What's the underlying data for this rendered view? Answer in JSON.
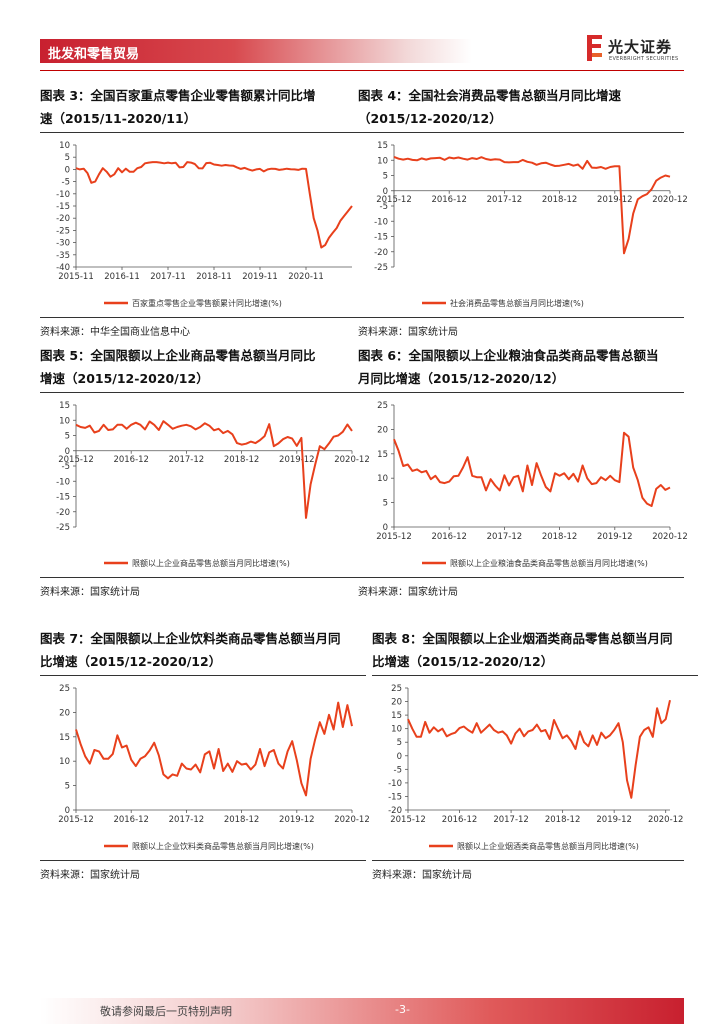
{
  "header": {
    "section": "批发和零售贸易",
    "brand": "光大证券",
    "brand_en": "EVERBRIGHT SECURITIES",
    "accent": "#c8202f"
  },
  "footer": {
    "disclaimer": "敬请参阅最后一页特别声明",
    "page": "-3-"
  },
  "panels": [
    {
      "title1": "图表 3：全国百家重点零售企业零售额累计同比增",
      "title2": "速（2015/11-2020/11）",
      "source": "资料来源：中华全国商业信息中心",
      "chart_data": {
        "type": "line",
        "color": "#e8401c",
        "series_name": "百家重点零售企业零售额累计同比增速(%)",
        "ylim": [
          -40,
          10
        ],
        "yticks": [
          10,
          5,
          0,
          -5,
          -10,
          -15,
          -20,
          -25,
          -30,
          -35,
          -40
        ],
        "xlabels": [
          "2015-11",
          "2016-11",
          "2017-11",
          "2018-11",
          "2019-11",
          "2020-11"
        ],
        "xaxis_at": "bottom",
        "values": [
          0.5,
          0,
          0.3,
          -1.5,
          -5.5,
          -5,
          -2,
          0.5,
          -1,
          -3,
          -2,
          0.5,
          -1.2,
          0.3,
          -1,
          -1,
          0.5,
          1,
          2.5,
          2.8,
          3,
          3,
          2.8,
          2.5,
          2.8,
          2.5,
          2.7,
          0.8,
          1,
          3,
          2.8,
          2.2,
          0.5,
          0.4,
          2.6,
          2.7,
          2,
          1.8,
          1.5,
          1.8,
          1.6,
          1.5,
          0.8,
          0.2,
          0.6,
          0,
          -0.5,
          0,
          0.2,
          -0.8,
          0,
          0.3,
          0.2,
          -0.2,
          0,
          0.3,
          0.1,
          0,
          -0.2,
          0.3,
          0.2,
          -10,
          -20,
          -25,
          -32,
          -31,
          -28,
          -26,
          -24,
          -21,
          -19,
          -17,
          -15
        ]
      }
    },
    {
      "title1": "图表 4：全国社会消费品零售总额当月同比增速",
      "title2": "（2015/12-2020/12）",
      "source": "资料来源：国家统计局",
      "chart_data": {
        "type": "line",
        "color": "#e8401c",
        "series_name": "社会消费品零售总额当月同比增速(%)",
        "ylim": [
          -25,
          15
        ],
        "yticks": [
          15,
          10,
          5,
          0,
          -5,
          -10,
          -15,
          -20,
          -25
        ],
        "xlabels": [
          "2015-12",
          "2016-12",
          "2017-12",
          "2018-12",
          "2019-12",
          "2020-12"
        ],
        "xaxis_at": "zero",
        "values": [
          11.1,
          10.5,
          10.2,
          10.5,
          10.1,
          10,
          10.6,
          10.2,
          10.6,
          10.7,
          10.8,
          10.1,
          10.9,
          10.6,
          10.9,
          10.5,
          10.2,
          10.7,
          10.4,
          11,
          10.4,
          10.1,
          10.3,
          10.2,
          9.4,
          9.3,
          9.4,
          9.4,
          10.1,
          9.5,
          9.2,
          8.5,
          9,
          9.2,
          8.6,
          8.1,
          8.2,
          8.5,
          8.8,
          8.2,
          8.6,
          7.2,
          9.8,
          7.6,
          7.5,
          7.8,
          7.2,
          7.8,
          8.0,
          8.0,
          -20.5,
          -15.8,
          -7.5,
          -2.8,
          -1.8,
          -1.1,
          0.5,
          3.3,
          4.3,
          5,
          4.6
        ]
      }
    },
    {
      "title1": "图表 5：全国限额以上企业商品零售总额当月同比",
      "title2": "增速（2015/12-2020/12）",
      "source": "资料来源：国家统计局",
      "chart_data": {
        "type": "line",
        "color": "#e8401c",
        "series_name": "限额以上企业商品零售总额当月同比增速(%)",
        "ylim": [
          -25,
          15
        ],
        "yticks": [
          15,
          10,
          5,
          0,
          -5,
          -10,
          -15,
          -20,
          -25
        ],
        "xlabels": [
          "2015-12",
          "2016-12",
          "2017-12",
          "2018-12",
          "2019-12",
          "2020-12"
        ],
        "xaxis_at": "zero",
        "values": [
          8.5,
          7.8,
          7.5,
          8.2,
          6,
          6.5,
          8.5,
          6.8,
          7,
          8.5,
          8.5,
          7.2,
          8.5,
          9.2,
          8.5,
          7,
          9.6,
          8.5,
          6.8,
          9.7,
          8.5,
          7.2,
          7.8,
          8.2,
          8.5,
          8,
          7,
          7.8,
          9.0,
          8.2,
          6.7,
          7.2,
          5.8,
          6.5,
          5.4,
          2.5,
          2,
          2.3,
          3,
          2.5,
          3.5,
          4.8,
          8.7,
          1.5,
          2.4,
          3.8,
          4.5,
          4.0,
          1.6,
          4.2,
          -22,
          -11,
          -4.5,
          1.5,
          0.5,
          2.4,
          4.6,
          5,
          6.2,
          8.6,
          6.5
        ]
      }
    },
    {
      "title1": "图表 6：全国限额以上企业粮油食品类商品零售总额当",
      "title2": "月同比增速（2015/12-2020/12）",
      "source": "资料来源：国家统计局",
      "chart_data": {
        "type": "line",
        "color": "#e8401c",
        "series_name": "限额以上企业粮油食品类商品零售总额当月同比增速(%)",
        "ylim": [
          0,
          25
        ],
        "yticks": [
          25,
          20,
          15,
          10,
          5,
          0
        ],
        "xlabels": [
          "2015-12",
          "2016-12",
          "2017-12",
          "2018-12",
          "2019-12",
          "2020-12"
        ],
        "xaxis_at": "bottom",
        "values": [
          18,
          15.6,
          12.5,
          12.8,
          11.5,
          11.8,
          11.2,
          11.5,
          9.8,
          10.5,
          9.2,
          9,
          9.3,
          10.4,
          10.5,
          12.2,
          14.3,
          10.5,
          10.2,
          10.2,
          7.5,
          9.8,
          8.5,
          7.5,
          10.6,
          8.5,
          10.2,
          10.5,
          7.3,
          12.6,
          8.6,
          13.1,
          10.5,
          8.2,
          7.3,
          11,
          10.5,
          11,
          9.8,
          10.9,
          9.3,
          12.6,
          10,
          8.8,
          9,
          10.2,
          9.6,
          10.5,
          9.6,
          9.2,
          19.3,
          18.5,
          12.2,
          9.6,
          6,
          4.8,
          4.3,
          7.8,
          8.6,
          7.6,
          8.1
        ]
      }
    },
    {
      "title1": "图表 7：全国限额以上企业饮料类商品零售总额当月同",
      "title2": "比增速（2015/12-2020/12）",
      "source": "资料来源：国家统计局",
      "chart_data": {
        "type": "line",
        "color": "#e8401c",
        "series_name": "限额以上企业饮料类商品零售总额当月同比增速(%)",
        "ylim": [
          0,
          25
        ],
        "yticks": [
          25,
          20,
          15,
          10,
          5,
          0
        ],
        "xlabels": [
          "2015-12",
          "2016-12",
          "2017-12",
          "2018-12",
          "2019-12",
          "2020-12"
        ],
        "xaxis_at": "bottom",
        "values": [
          16.5,
          13.5,
          11,
          9.5,
          12.3,
          12,
          10.5,
          10.5,
          11.5,
          15.3,
          12.8,
          13.2,
          10.3,
          9,
          10.5,
          11,
          12.2,
          13.8,
          11.2,
          7.3,
          6.5,
          7.3,
          7,
          9.5,
          8.5,
          8.3,
          9.3,
          7.7,
          11.4,
          12,
          8.5,
          12.5,
          8,
          9.5,
          7.8,
          10,
          9.3,
          9.5,
          8.3,
          9.3,
          12.5,
          9,
          11.8,
          12.3,
          9.5,
          8.5,
          12,
          14.1,
          10.2,
          5.5,
          3,
          10.5,
          14.5,
          18,
          15.6,
          19.5,
          16.5,
          22,
          17,
          21.5,
          17.2
        ]
      }
    },
    {
      "title1": "图表 8：全国限额以上企业烟酒类商品零售总额当月同",
      "title2": "比增速（2015/12-2020/12）",
      "source": "资料来源：国家统计局",
      "chart_data": {
        "type": "line",
        "color": "#e8401c",
        "series_name": "限额以上企业烟酒类商品零售总额当月同比增速(%)",
        "ylim": [
          -20,
          25
        ],
        "yticks": [
          25,
          20,
          15,
          10,
          5,
          0,
          -5,
          -10,
          -15,
          -20
        ],
        "xlabels": [
          "2015-12",
          "2016-12",
          "2017-12",
          "2018-12",
          "2019-12",
          "2020-12"
        ],
        "xaxis_at": "bottom",
        "values": [
          13.5,
          10,
          7,
          7,
          12.5,
          8.5,
          10.5,
          9,
          10,
          7.2,
          8,
          8.5,
          10.2,
          10.8,
          9.5,
          8.5,
          12,
          8.5,
          10,
          11.5,
          9.5,
          8.5,
          9,
          7.5,
          4.5,
          8.2,
          10,
          7.2,
          9,
          9.5,
          11.5,
          9,
          9.5,
          6.2,
          13.2,
          9.7,
          6.5,
          7.5,
          5.5,
          2.5,
          9,
          5,
          3.5,
          7.5,
          4,
          8.5,
          6.5,
          7.5,
          9.5,
          12,
          5,
          -9,
          -15.5,
          -3.5,
          7,
          9.5,
          10.5,
          7,
          17.5,
          12,
          13.5,
          20.5
        ]
      }
    }
  ]
}
